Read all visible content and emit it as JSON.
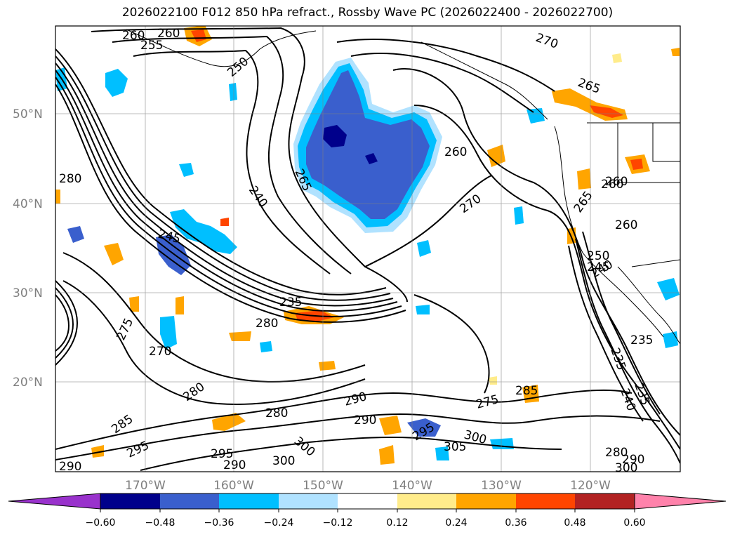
{
  "title": "2026022100 F012 850 hPa refract., Rossby Wave PC (2026022400 - 2026022700)",
  "latitude_labels": [
    "50°N",
    "40°N",
    "30°N",
    "20°N"
  ],
  "longitude_labels": [
    "170°W",
    "160°W",
    "150°W",
    "140°W",
    "130°W",
    "120°W"
  ],
  "colorbar": {
    "ticks": [
      "−0.60",
      "−0.48",
      "−0.36",
      "−0.24",
      "−0.12",
      "0.12",
      "0.24",
      "0.36",
      "0.48",
      "0.60"
    ],
    "colors": [
      "#9932cc",
      "#00008b",
      "#3a5fcd",
      "#00bfff",
      "#b0e2ff",
      "#ffffff",
      "#ffec8b",
      "#ffa500",
      "#ff4500",
      "#b22222",
      "#ff82ab"
    ]
  },
  "contour_labels": [
    "260",
    "260",
    "255",
    "250",
    "270",
    "265",
    "260",
    "265",
    "240",
    "270",
    "280",
    "245",
    "260",
    "265",
    "260",
    "250",
    "245",
    "240",
    "235",
    "280",
    "235",
    "275",
    "270",
    "235",
    "240",
    "235",
    "280",
    "285",
    "280",
    "290",
    "290",
    "285",
    "275",
    "295",
    "300",
    "300",
    "305",
    "295",
    "295",
    "290",
    "300",
    "290",
    "280",
    "290",
    "300",
    "260"
  ]
}
